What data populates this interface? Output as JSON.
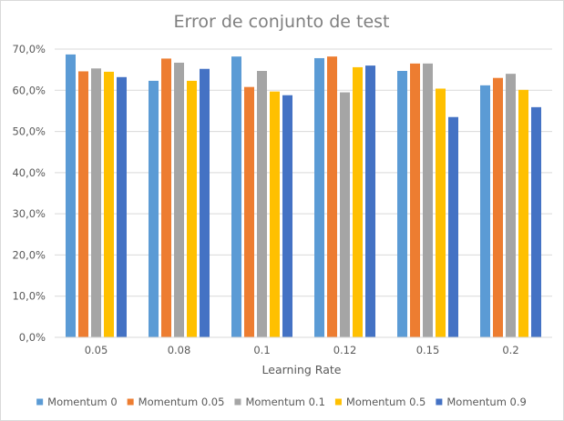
{
  "chart_data": {
    "type": "bar",
    "title": "Error de conjunto de test",
    "xlabel": "Learning Rate",
    "ylabel": "",
    "categories": [
      "0.05",
      "0.08",
      "0.1",
      "0.12",
      "0.15",
      "0.2"
    ],
    "ylim": [
      0,
      70
    ],
    "yticks": [
      0,
      10,
      20,
      30,
      40,
      50,
      60,
      70
    ],
    "ytick_labels": [
      "0,0%",
      "10,0%",
      "20,0%",
      "30,0%",
      "40,0%",
      "50,0%",
      "60,0%",
      "70,0%"
    ],
    "grid": true,
    "legend_position": "bottom",
    "series": [
      {
        "name": "Momentum 0",
        "color": "#5b9bd5",
        "values": [
          68.7,
          62.3,
          68.2,
          67.8,
          64.7,
          61.2
        ]
      },
      {
        "name": "Momentum 0.05",
        "color": "#ed7d31",
        "values": [
          64.6,
          67.7,
          60.8,
          68.2,
          66.5,
          63.0
        ]
      },
      {
        "name": "Momentum 0.1",
        "color": "#a5a5a5",
        "values": [
          65.3,
          66.7,
          64.7,
          59.5,
          66.5,
          64.0
        ]
      },
      {
        "name": "Momentum 0.5",
        "color": "#ffc000",
        "values": [
          64.5,
          62.3,
          59.7,
          65.6,
          60.4,
          60.1
        ]
      },
      {
        "name": "Momentum 0.9",
        "color": "#4472c4",
        "values": [
          63.2,
          65.2,
          58.8,
          66.0,
          53.5,
          55.9
        ]
      }
    ]
  }
}
